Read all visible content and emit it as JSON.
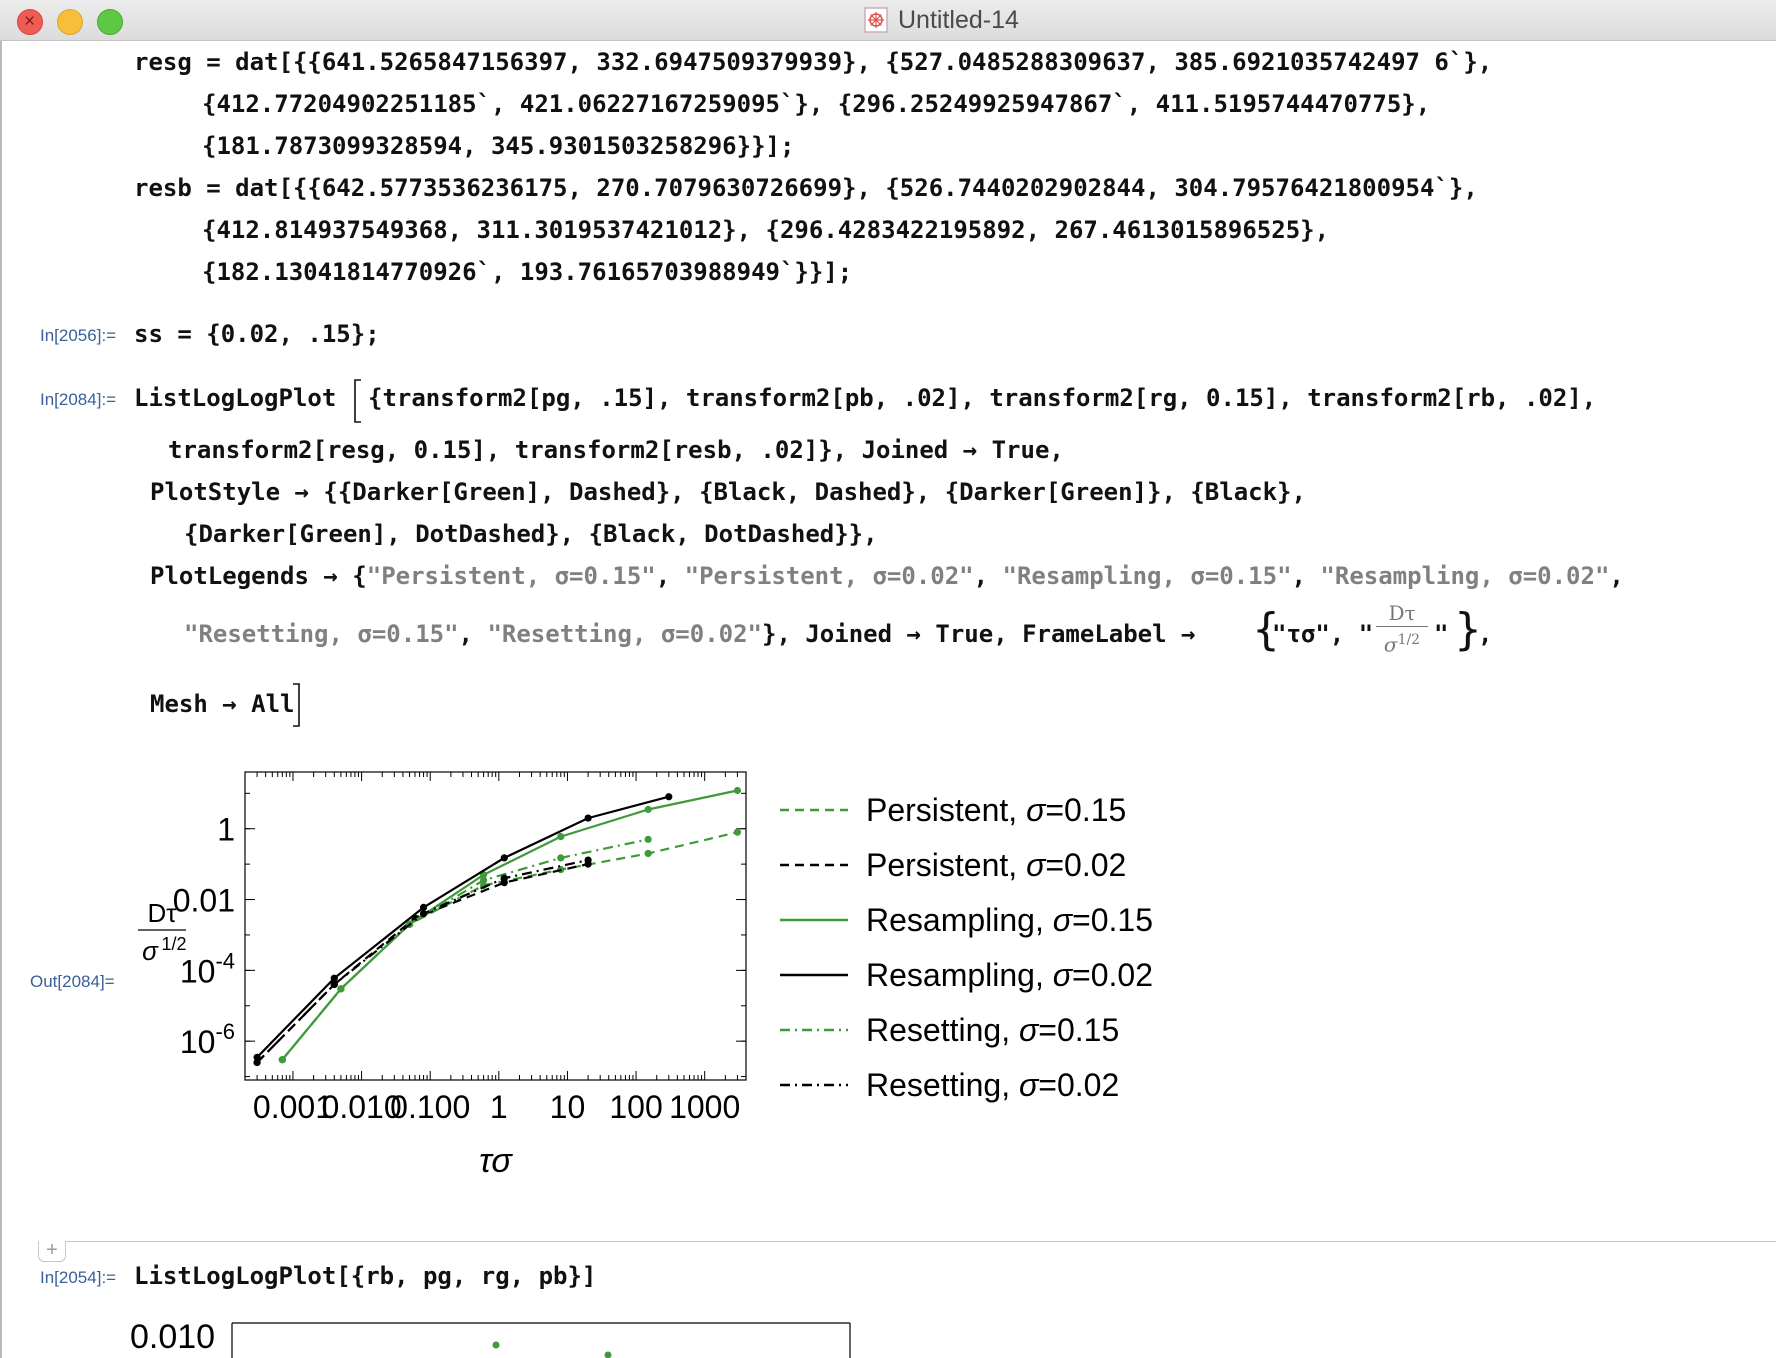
{
  "window": {
    "title": "Untitled-14"
  },
  "cells": {
    "resg_line1": "resg = dat[{{641.5265847156397, 332.6947509379939}, {527.0485288309637, 385.6921035742497 6`},",
    "resg_line2": "{412.77204902251185`, 421.06227167259095`}, {296.25249925947867`, 411.5195744470775},",
    "resg_line3": "{181.7873099328594, 345.9301503258296}}];",
    "resb_line1": "resb = dat[{{642.5773536236175, 270.7079630726699}, {526.7440202902844, 304.79576421800954`},",
    "resb_line2": "{412.814937549368, 311.3019537421012}, {296.4283422195892, 267.4613015896525},",
    "resb_line3": "{182.13041814770926`, 193.76165703988949`}}];",
    "in2056_label": "In[2056]:=",
    "in2056_code": "ss = {0.02, .15};",
    "in2084_label": "In[2084]:=",
    "in2084_line1": "ListLogLogPlot",
    "in2084_line1b": "{transform2[pg, .15], transform2[pb, .02], transform2[rg, 0.15], transform2[rb, .02],",
    "in2084_line2": "transform2[resg, 0.15], transform2[resb, .02]}, Joined → True,",
    "in2084_line3": "PlotStyle → {{Darker[Green], Dashed}, {Black, Dashed}, {Darker[Green]}, {Black},",
    "in2084_line4": "{Darker[Green], DotDashed}, {Black, DotDashed}},",
    "in2084_line5a": "PlotLegends → {",
    "in2084_str1": "\"Persistent, σ=0.15\"",
    "in2084_str2": "\"Persistent, σ=0.02\"",
    "in2084_str3": "\"Resampling, σ=0.15\"",
    "in2084_str4": "\"Resampling, σ=0.02\"",
    "in2084_str5": "\"Resetting, σ=0.15\"",
    "in2084_str6": "\"Resetting, σ=0.02\"",
    "in2084_line6b": "}, Joined → True, FrameLabel → ",
    "in2084_fl1": "\"τσ\", \"",
    "in2084_frac_num": "Dτ",
    "in2084_frac_den": "σ1/2",
    "in2084_fl2": "\"",
    "in2084_line7": "Mesh → All",
    "out2084_label": "Out[2084]=",
    "in2054_label": "In[2054]:=",
    "in2054_code": "ListLogLogPlot[{rb, pg, rg, pb}]",
    "partial_tick": "0.010"
  },
  "chart_data": {
    "type": "line",
    "scale": "log-log",
    "xlabel": "τσ",
    "ylabel": "Dτ / σ^1/2",
    "xlim": [
      0.0002,
      4000
    ],
    "ylim": [
      8e-08,
      40
    ],
    "x_ticks": [
      "0.001",
      "0.010",
      "0.100",
      "1",
      "10",
      "100",
      "1000"
    ],
    "x_tick_values": [
      0.001,
      0.01,
      0.1,
      1,
      10,
      100,
      1000
    ],
    "y_ticks": [
      "1",
      "0.01",
      "10^-4",
      "10^-6"
    ],
    "y_tick_values": [
      1,
      0.01,
      0.0001,
      1e-06
    ],
    "legend_position": "right",
    "series": [
      {
        "name": "Persistent, σ=0.15",
        "color": "#3f9a3a",
        "dash": "dashed",
        "x": [
          0.0007,
          0.005,
          0.05,
          0.6,
          8,
          150,
          3000
        ],
        "y": [
          3e-07,
          3e-05,
          0.002,
          0.025,
          0.07,
          0.2,
          0.8
        ]
      },
      {
        "name": "Persistent, σ=0.02",
        "color": "#000000",
        "dash": "dashed",
        "x": [
          0.0003,
          0.004,
          0.06,
          1.2,
          20
        ],
        "y": [
          2.5e-07,
          4e-05,
          0.003,
          0.03,
          0.1
        ]
      },
      {
        "name": "Resampling, σ=0.15",
        "color": "#3f9a3a",
        "dash": "solid",
        "x": [
          0.0007,
          0.005,
          0.05,
          0.6,
          8,
          150,
          3000
        ],
        "y": [
          3e-07,
          3e-05,
          0.002,
          0.05,
          0.6,
          3.5,
          12
        ]
      },
      {
        "name": "Resampling, σ=0.02",
        "color": "#000000",
        "dash": "solid",
        "x": [
          0.0003,
          0.004,
          0.08,
          1.2,
          20,
          300
        ],
        "y": [
          3.5e-07,
          6e-05,
          0.006,
          0.15,
          2,
          8
        ]
      },
      {
        "name": "Resetting, σ=0.15",
        "color": "#3f9a3a",
        "dash": "dotdashed",
        "x": [
          0.0007,
          0.005,
          0.05,
          0.6,
          8,
          150
        ],
        "y": [
          3e-07,
          3e-05,
          0.002,
          0.035,
          0.15,
          0.5
        ]
      },
      {
        "name": "Resetting, σ=0.02",
        "color": "#000000",
        "dash": "dotdashed",
        "x": [
          0.0003,
          0.004,
          0.08,
          1.2,
          20
        ],
        "y": [
          2.5e-07,
          4e-05,
          0.004,
          0.04,
          0.13
        ]
      }
    ]
  }
}
